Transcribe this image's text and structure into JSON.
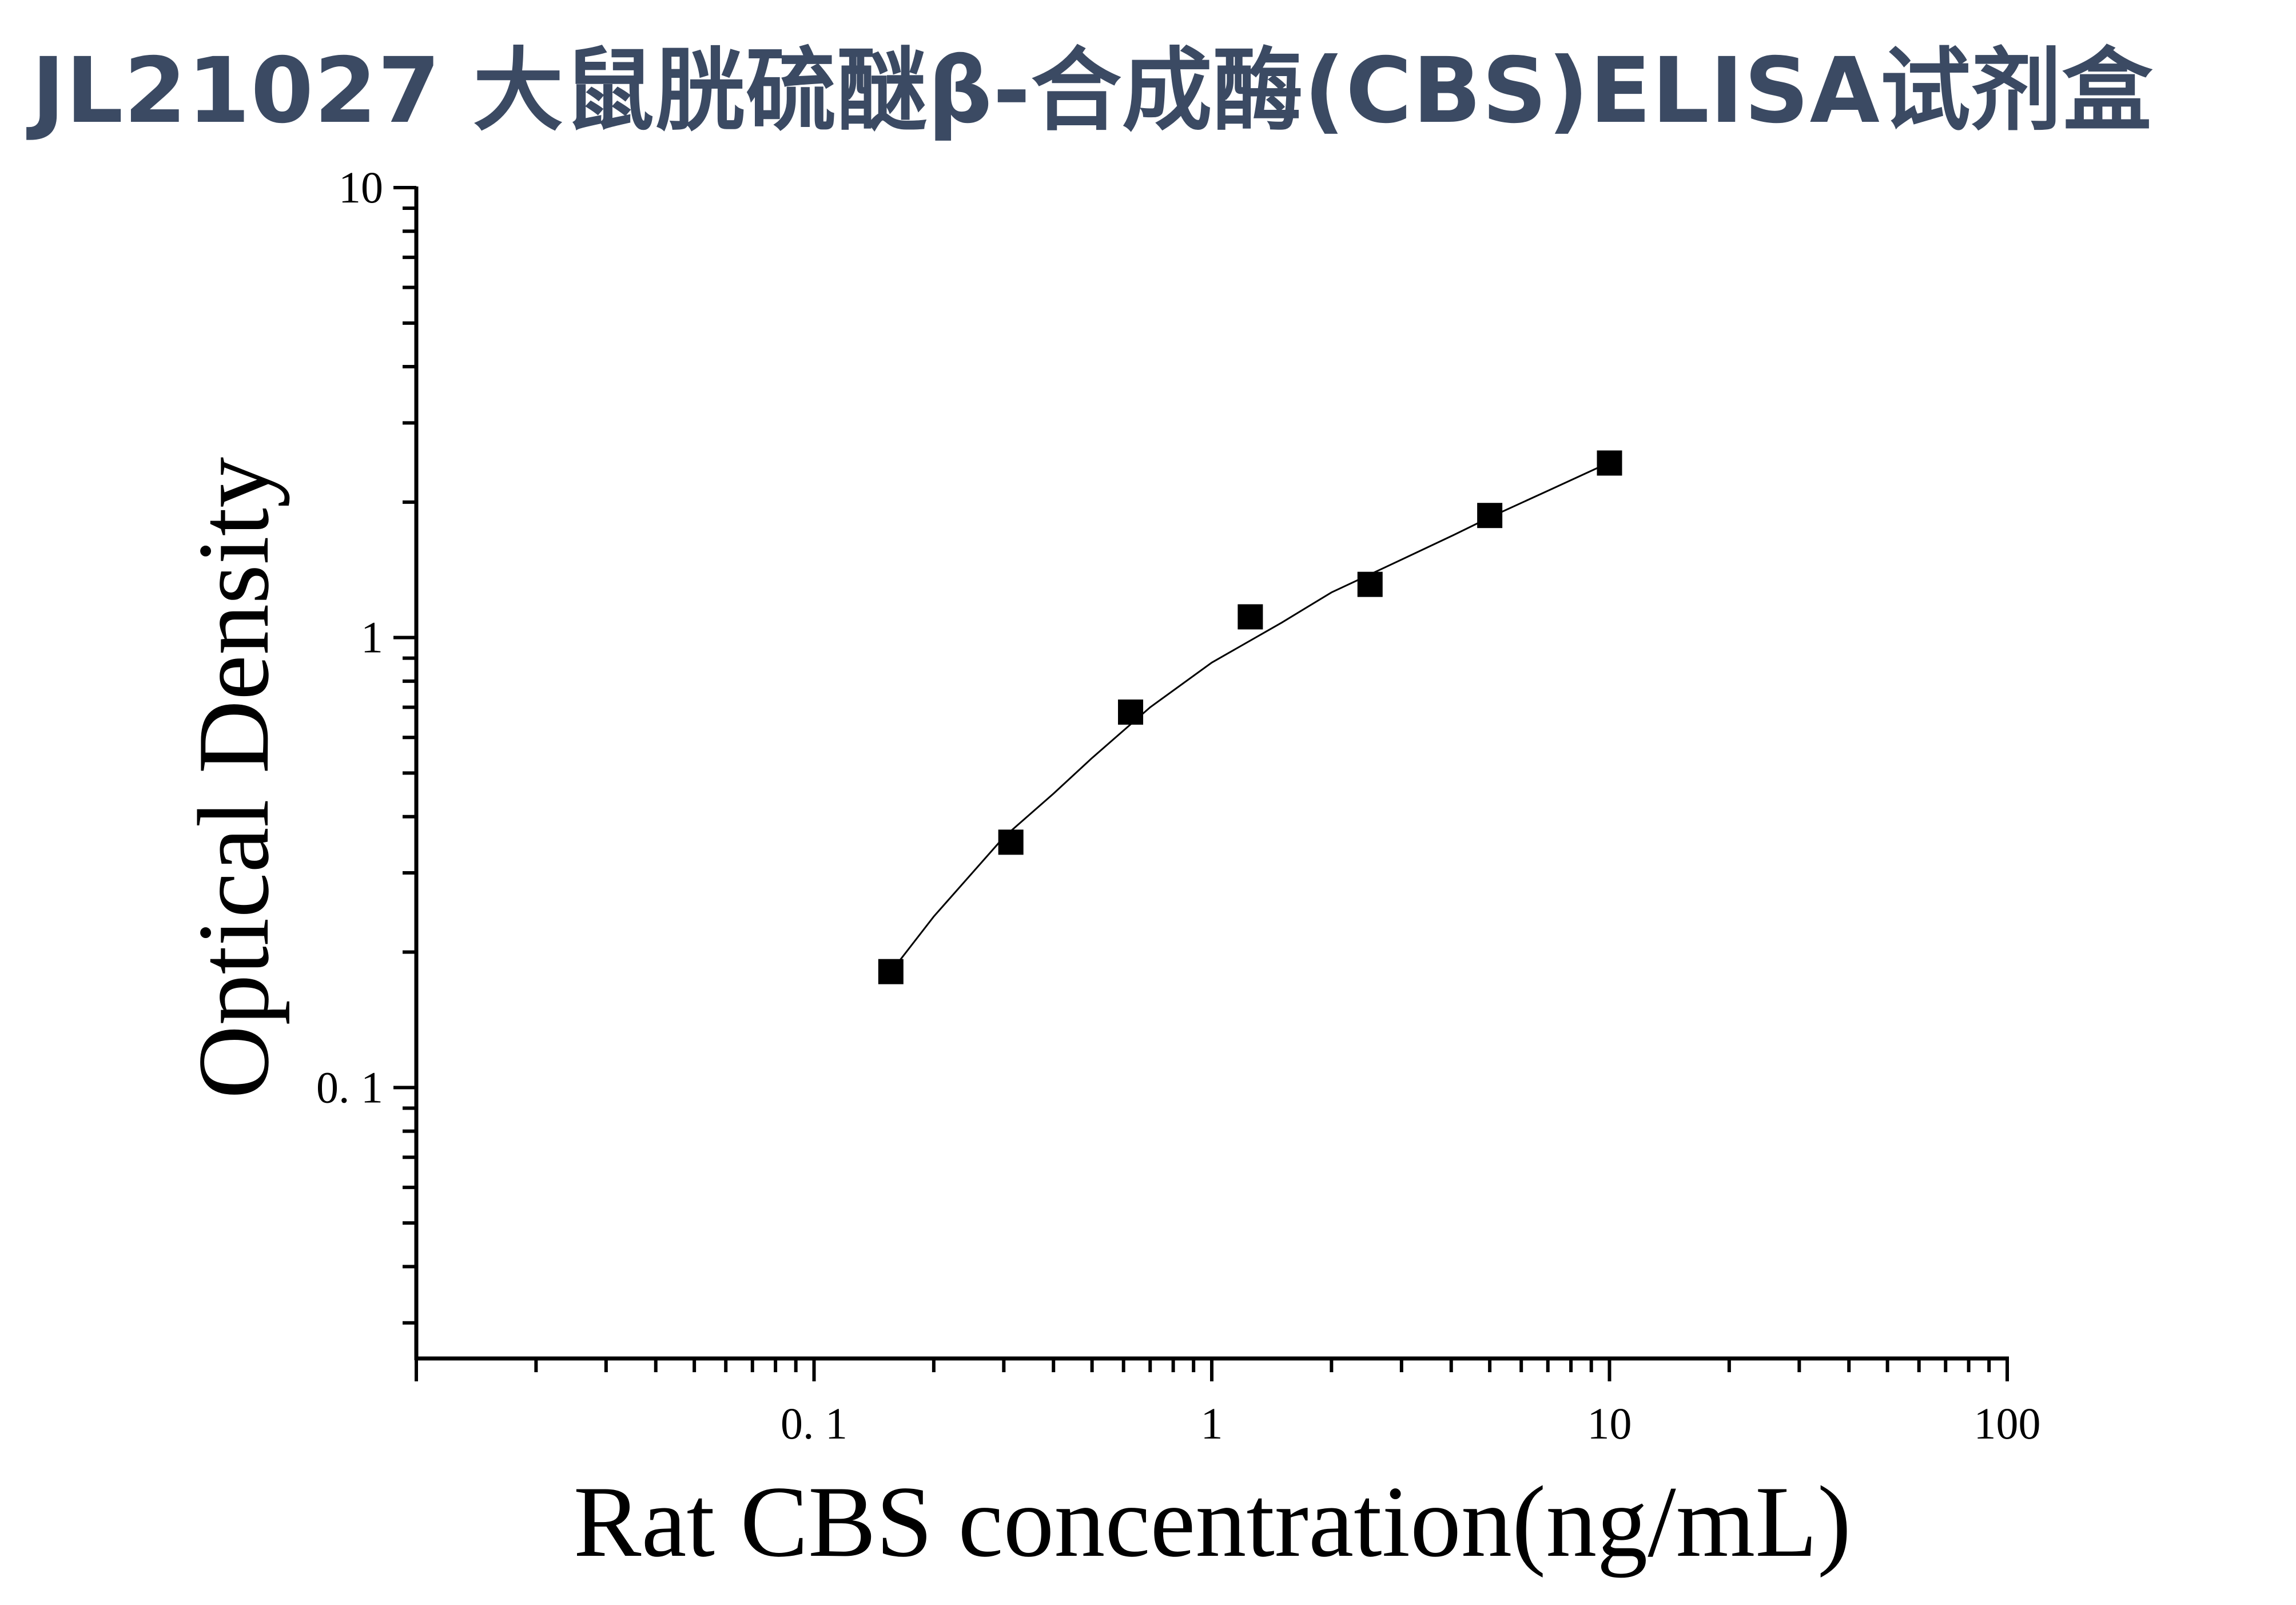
{
  "title": "JL21027 大鼠胱硫醚β-合成酶(CBS)ELISA试剂盒",
  "chart_data": {
    "type": "scatter",
    "xlabel": "Rat CBS concentration(ng/mL)",
    "ylabel": "Optical Density",
    "xscale": "log",
    "yscale": "log",
    "xlim": [
      0.01,
      100
    ],
    "ylim": [
      0.025,
      10
    ],
    "x_ticks": [
      0.1,
      1,
      10,
      100
    ],
    "x_tick_labels": [
      "0. 1",
      "1",
      "10",
      "100"
    ],
    "y_ticks": [
      0.1,
      1,
      10
    ],
    "y_tick_labels": [
      "0. 1",
      "1",
      "10"
    ],
    "grid": false,
    "series": [
      {
        "marker": "square",
        "color": "#000000",
        "x": [
          0.156,
          0.3125,
          0.625,
          1.25,
          2.5,
          5,
          10
        ],
        "y": [
          0.181,
          0.351,
          0.683,
          1.112,
          1.313,
          1.868,
          2.443
        ]
      }
    ],
    "fit_curve": {
      "color": "#000000",
      "x": [
        0.16,
        0.2,
        0.25,
        0.3,
        0.4,
        0.5,
        0.7,
        1,
        1.5,
        2,
        3,
        4,
        5,
        7,
        10
      ],
      "y": [
        0.186,
        0.24,
        0.3,
        0.36,
        0.45,
        0.54,
        0.7,
        0.88,
        1.08,
        1.26,
        1.49,
        1.68,
        1.85,
        2.12,
        2.45
      ]
    }
  }
}
